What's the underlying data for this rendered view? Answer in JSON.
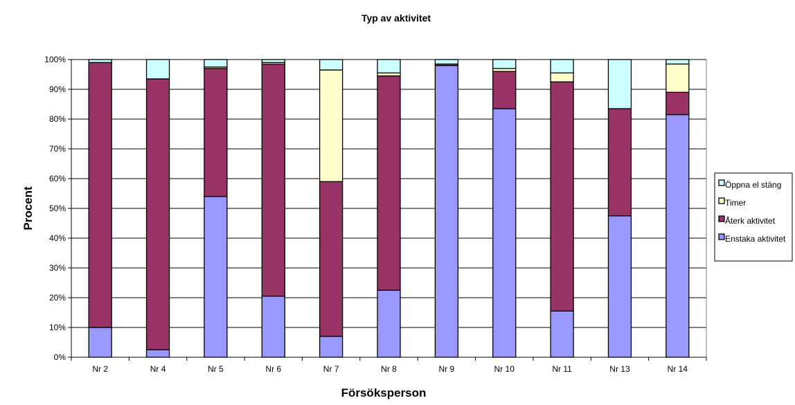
{
  "chart_data": {
    "type": "bar",
    "stacked": true,
    "percent_stacked": true,
    "title": "Typ av aktivitet",
    "xlabel": "Försöksperson",
    "ylabel": "Procent",
    "categories": [
      "Nr 2",
      "Nr 4",
      "Nr 5",
      "Nr 6",
      "Nr 7",
      "Nr 8",
      "Nr 9",
      "Nr 10",
      "Nr 11",
      "Nr 13",
      "Nr 14"
    ],
    "y_ticks": [
      "0%",
      "10%",
      "20%",
      "30%",
      "40%",
      "50%",
      "60%",
      "70%",
      "80%",
      "90%",
      "100%"
    ],
    "ylim": [
      0,
      100
    ],
    "grid": true,
    "legend_position": "right",
    "series": [
      {
        "name": "Enstaka aktivitet",
        "color": "#9999ff",
        "values": [
          10,
          2.5,
          54,
          20.5,
          7,
          22.5,
          98,
          83.5,
          15.5,
          47.5,
          81.5
        ]
      },
      {
        "name": "Återk aktivitet",
        "color": "#993366",
        "values": [
          89,
          91,
          43,
          78,
          52,
          72,
          0.5,
          12.5,
          77,
          36,
          7.5
        ]
      },
      {
        "name": "Timer",
        "color": "#ffffcc",
        "values": [
          0,
          0,
          0.5,
          0.5,
          37.5,
          1,
          0,
          1,
          3,
          0,
          9.5
        ]
      },
      {
        "name": "Öppna el stäng",
        "color": "#ccffff",
        "values": [
          1,
          6.5,
          2.5,
          1,
          3.5,
          4.5,
          1.5,
          3,
          4.5,
          16.5,
          1.5
        ]
      }
    ],
    "legend_order": [
      "Öppna el stäng",
      "Timer",
      "Återk aktivitet",
      "Enstaka aktivitet"
    ]
  }
}
